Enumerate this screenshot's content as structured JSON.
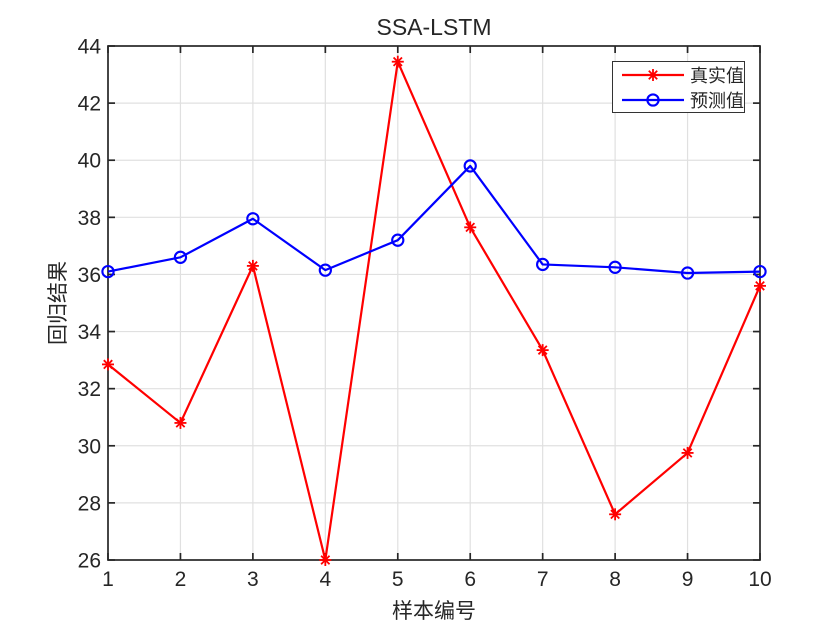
{
  "chart_data": {
    "type": "line",
    "title": "SSA-LSTM",
    "xlabel": "样本编号",
    "ylabel": "回归结果",
    "x": [
      1,
      2,
      3,
      4,
      5,
      6,
      7,
      8,
      9,
      10
    ],
    "series": [
      {
        "name": "真实值",
        "color": "#ff0000",
        "marker": "asterisk",
        "values": [
          32.85,
          30.8,
          36.3,
          26.0,
          43.45,
          37.65,
          33.35,
          27.6,
          29.75,
          35.6
        ]
      },
      {
        "name": "预测值",
        "color": "#0000ff",
        "marker": "circle",
        "values": [
          36.1,
          36.6,
          37.95,
          36.15,
          37.2,
          39.8,
          36.35,
          36.25,
          36.05,
          36.1
        ]
      }
    ],
    "xlim": [
      1,
      10
    ],
    "ylim": [
      26,
      44
    ],
    "xticks": [
      1,
      2,
      3,
      4,
      5,
      6,
      7,
      8,
      9,
      10
    ],
    "yticks": [
      26,
      28,
      30,
      32,
      34,
      36,
      38,
      40,
      42,
      44
    ],
    "grid": true,
    "legend_position": "top-right",
    "colors": {
      "axis": "#262626",
      "grid": "#e0e0e0",
      "text": "#262626",
      "background": "#ffffff"
    }
  }
}
